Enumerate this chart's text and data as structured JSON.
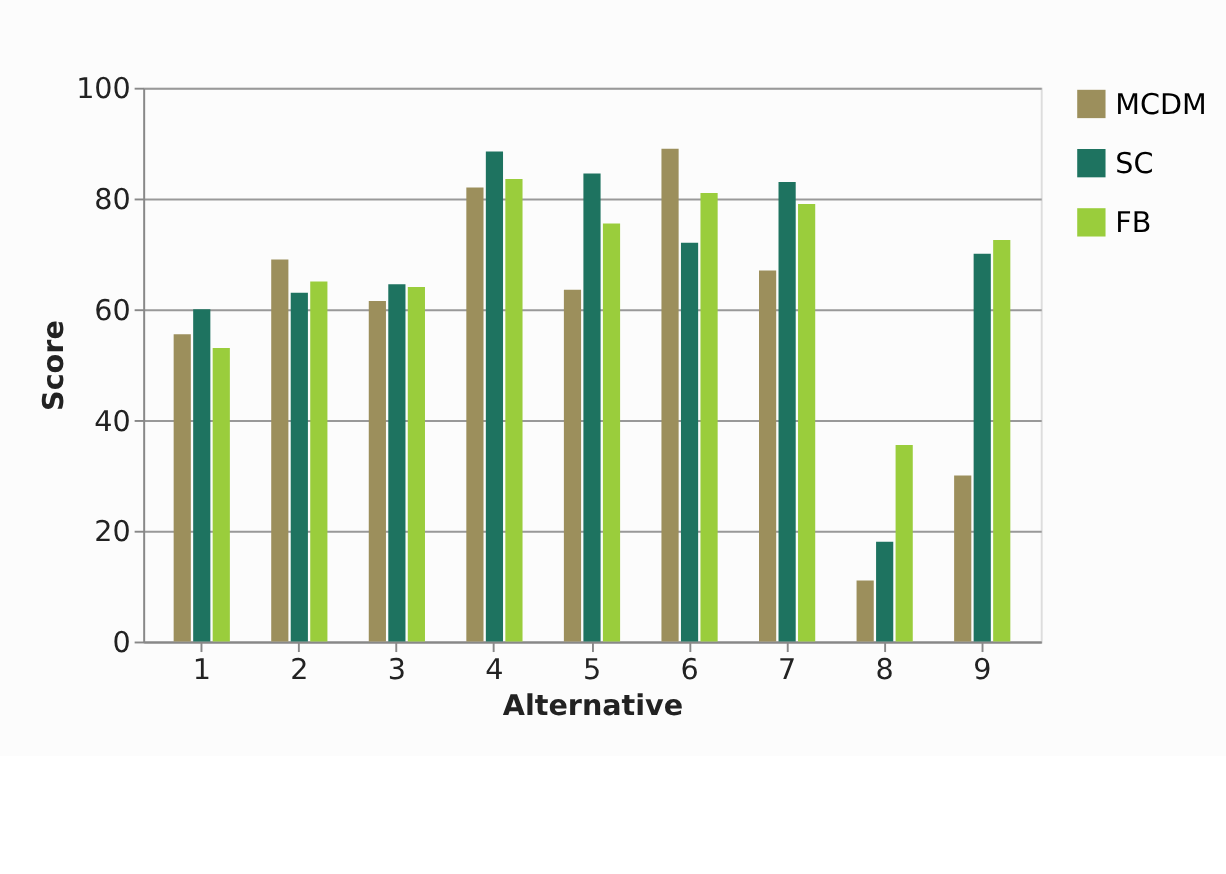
{
  "chart_data": {
    "type": "bar",
    "xlabel": "Alternative",
    "ylabel": "Score",
    "categories": [
      "1",
      "2",
      "3",
      "4",
      "5",
      "6",
      "7",
      "8",
      "9"
    ],
    "series": [
      {
        "name": "MCDM",
        "color": "#9c8f5c",
        "values": [
          55.5,
          69,
          61.5,
          82,
          63.5,
          89,
          67,
          11,
          30
        ]
      },
      {
        "name": "SC",
        "color": "#1e7360",
        "values": [
          60,
          63,
          64.5,
          88.5,
          84.5,
          72,
          83,
          18,
          70
        ]
      },
      {
        "name": "FB",
        "color": "#9acd3c",
        "values": [
          53,
          65,
          64,
          83.5,
          75.5,
          81,
          79,
          35.5,
          72.5
        ]
      }
    ],
    "ylim": [
      0,
      100
    ],
    "yticks": [
      0,
      20,
      40,
      60,
      80,
      100
    ],
    "grid": "y",
    "legend": "right"
  }
}
